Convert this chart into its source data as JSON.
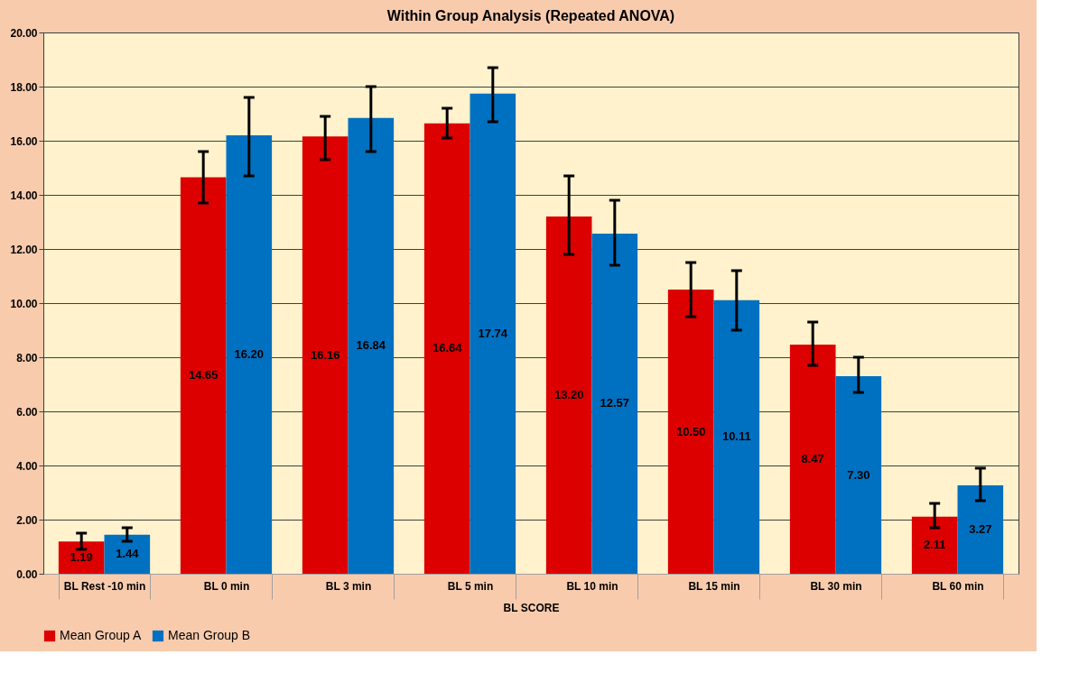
{
  "chart_data": {
    "type": "bar",
    "title": "Within Group Analysis (Repeated ANOVA)",
    "xlabel": "BL SCORE",
    "categories": [
      "BL Rest -10 min",
      "BL 0 min",
      "BL 3 min",
      "BL 5 min",
      "BL 10 min",
      "BL 15 min",
      "BL 30 min",
      "BL 60 min"
    ],
    "series": [
      {
        "name": "Mean Group A",
        "color": "#dc0000",
        "values": [
          1.19,
          14.65,
          16.16,
          16.64,
          13.2,
          10.5,
          8.47,
          2.11
        ],
        "value_labels": [
          "1.19",
          "14.65",
          "16.16",
          "16.64",
          "13.20",
          "10.50",
          "8.47",
          "2.11"
        ],
        "errors": [
          [
            0.9,
            1.5
          ],
          [
            13.7,
            15.6
          ],
          [
            15.3,
            16.9
          ],
          [
            16.1,
            17.2
          ],
          [
            11.8,
            14.7
          ],
          [
            9.5,
            11.5
          ],
          [
            7.7,
            9.3
          ],
          [
            1.7,
            2.6
          ]
        ]
      },
      {
        "name": "Mean Group B",
        "color": "#0070c0",
        "values": [
          1.44,
          16.2,
          16.84,
          17.74,
          12.57,
          10.11,
          7.3,
          3.27
        ],
        "value_labels": [
          "1.44",
          "16.20",
          "16.84",
          "17.74",
          "12.57",
          "10.11",
          "7.30",
          "3.27"
        ],
        "errors": [
          [
            1.2,
            1.7
          ],
          [
            14.7,
            17.6
          ],
          [
            15.6,
            18.0
          ],
          [
            16.7,
            18.7
          ],
          [
            11.4,
            13.8
          ],
          [
            9.0,
            11.2
          ],
          [
            6.7,
            8.0
          ],
          [
            2.7,
            3.9
          ]
        ]
      }
    ],
    "ylim": [
      0,
      20
    ],
    "yticks": [
      {
        "value": 0,
        "label": "0.00"
      },
      {
        "value": 2,
        "label": "2.00"
      },
      {
        "value": 4,
        "label": "4.00"
      },
      {
        "value": 6,
        "label": "6.00"
      },
      {
        "value": 8,
        "label": "8.00"
      },
      {
        "value": 10,
        "label": "10.00"
      },
      {
        "value": 12,
        "label": "12.00"
      },
      {
        "value": 14,
        "label": "14.00"
      },
      {
        "value": 16,
        "label": "16.00"
      },
      {
        "value": 18,
        "label": "18.00"
      },
      {
        "value": 20,
        "label": "20.00"
      }
    ],
    "grid": "y",
    "legend": "bottom"
  }
}
